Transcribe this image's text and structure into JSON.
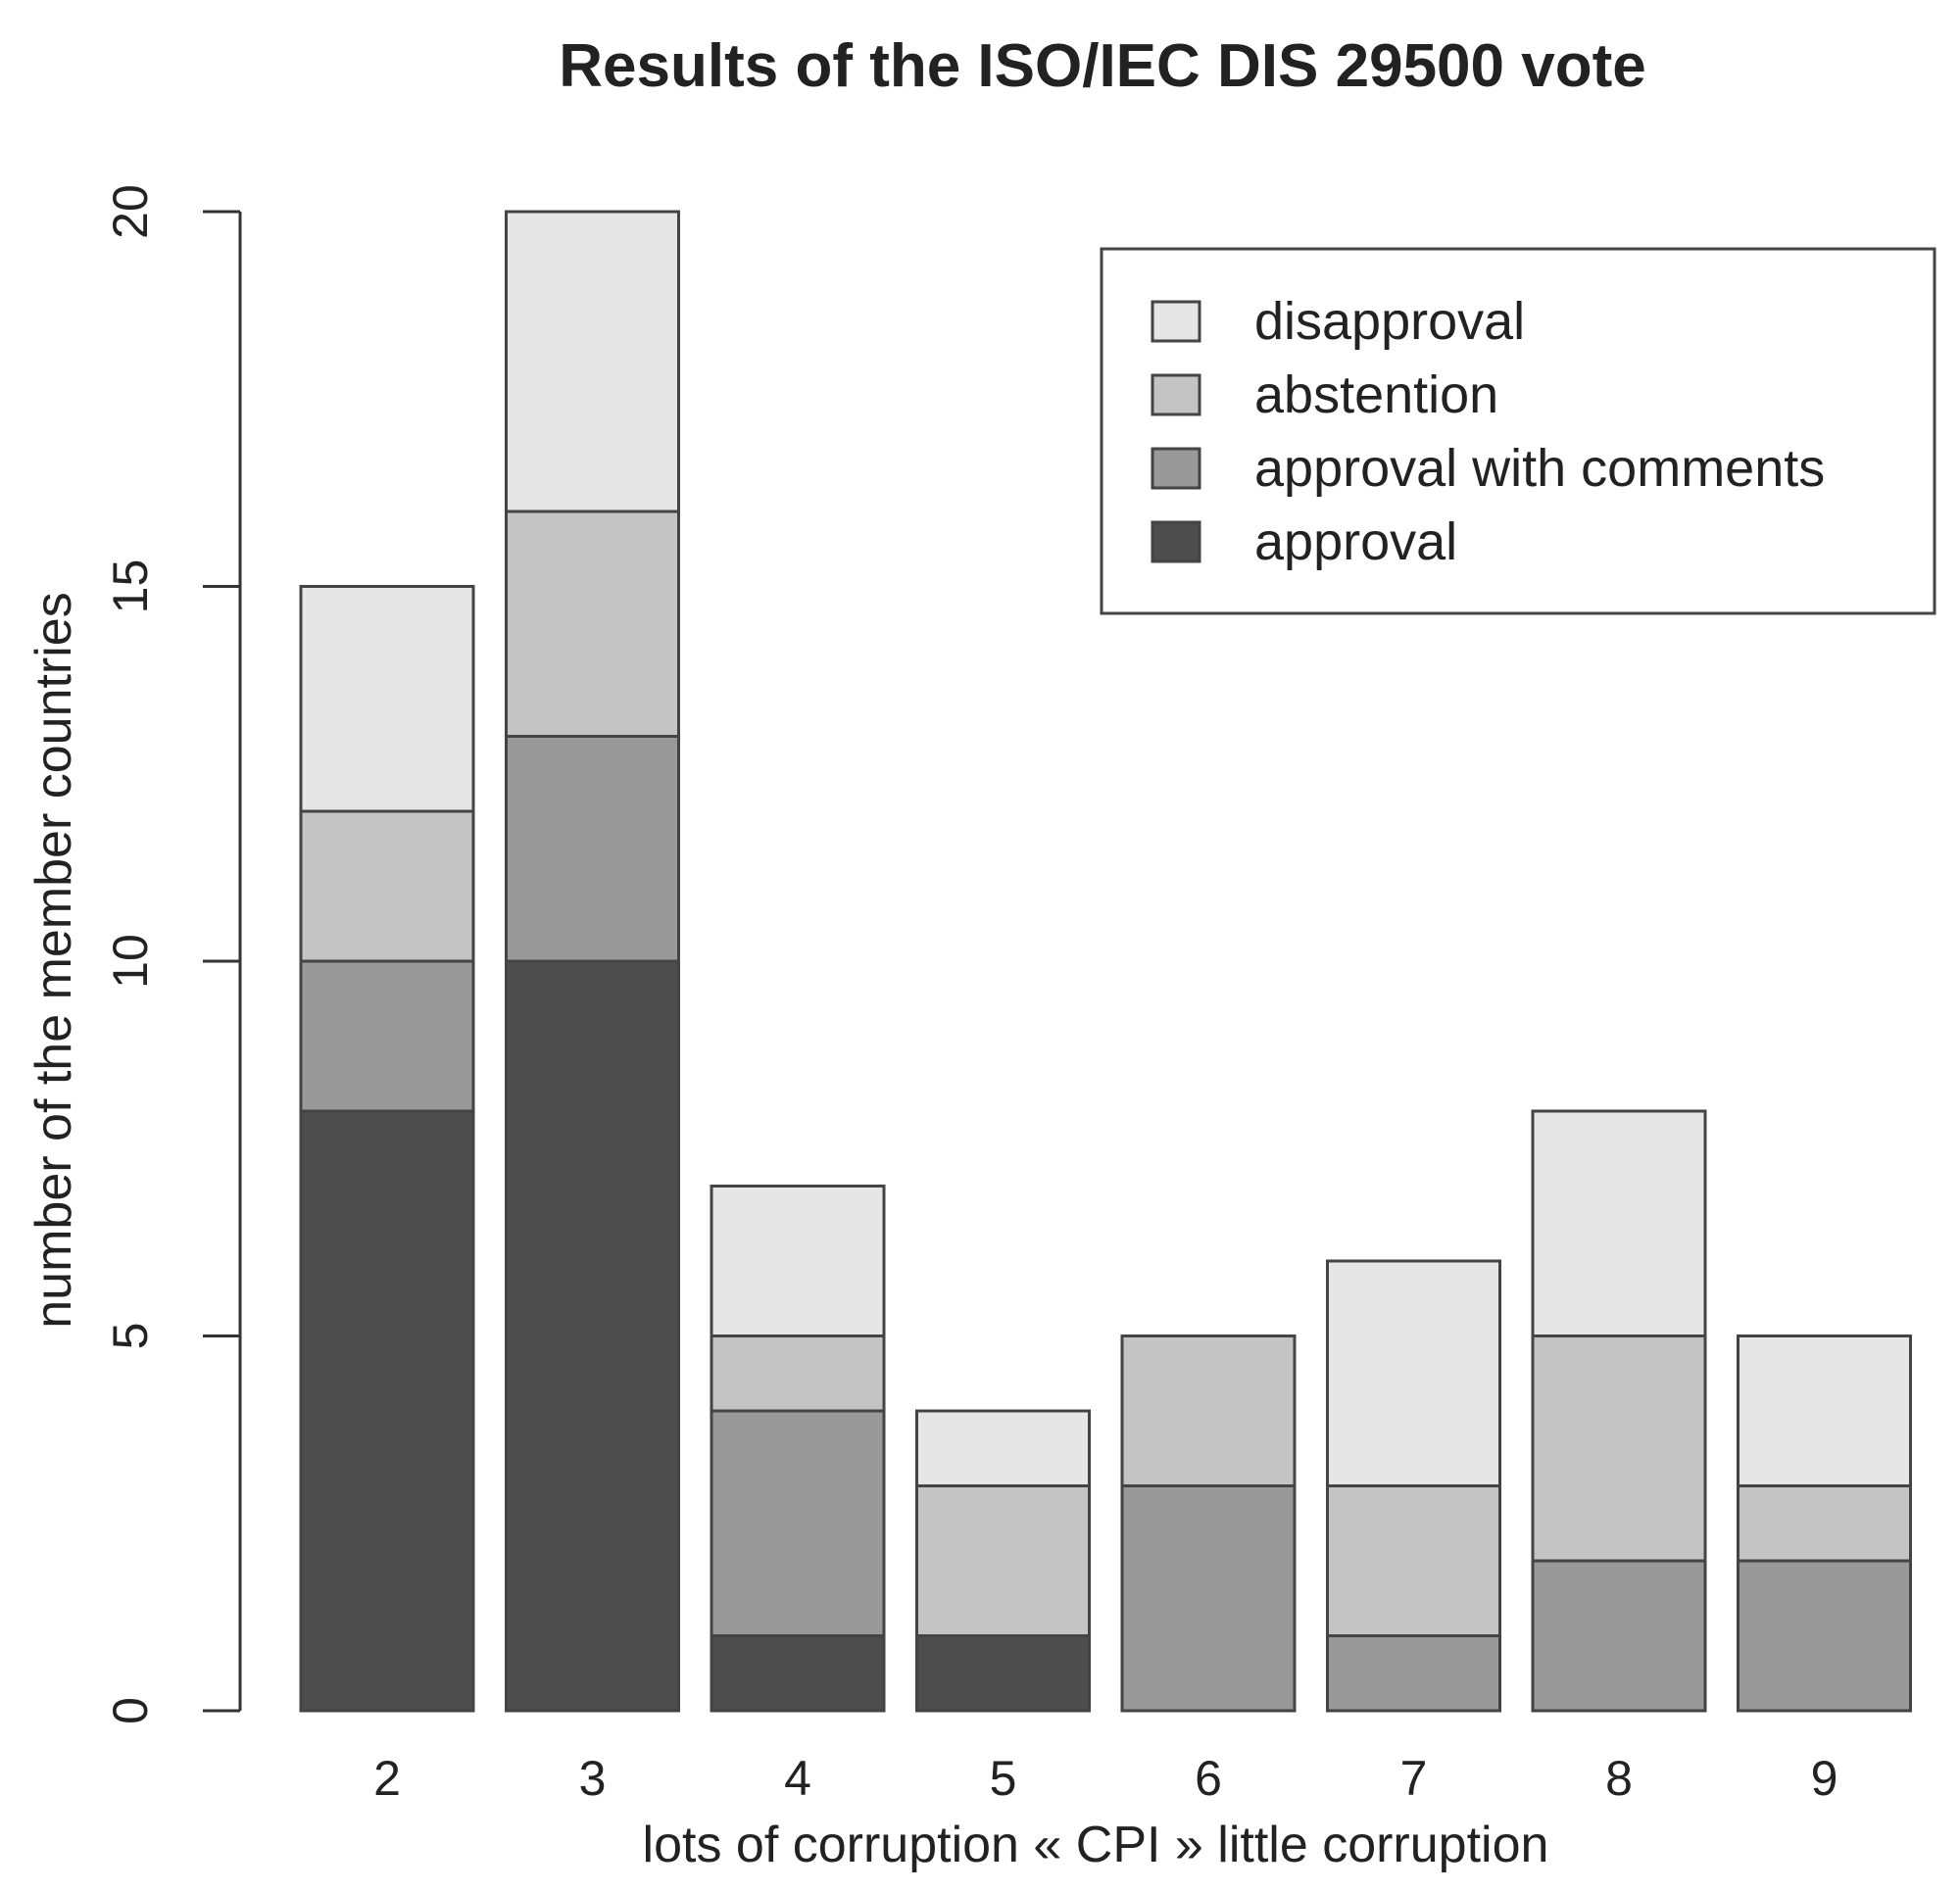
{
  "chart_data": {
    "type": "bar",
    "stacked": true,
    "title": "Results of the ISO/IEC DIS 29500 vote",
    "xlabel": "lots of corruption « CPI » little corruption",
    "ylabel": "number of the member countries",
    "categories": [
      "2",
      "3",
      "4",
      "5",
      "6",
      "7",
      "8",
      "9"
    ],
    "ylim": [
      0,
      20
    ],
    "yticks": [
      0,
      5,
      10,
      15,
      20
    ],
    "grid": false,
    "legend_position": "top-right",
    "series": [
      {
        "name": "approval",
        "color": "#4d4d4d",
        "values": [
          8,
          10,
          1,
          1,
          0,
          0,
          0,
          0
        ]
      },
      {
        "name": "approval with comments",
        "color": "#999999",
        "values": [
          2,
          3,
          3,
          0,
          3,
          1,
          2,
          2
        ]
      },
      {
        "name": "abstention",
        "color": "#c4c4c4",
        "values": [
          2,
          3,
          1,
          2,
          2,
          2,
          3,
          1
        ]
      },
      {
        "name": "disapproval",
        "color": "#e6e6e6",
        "values": [
          3,
          4,
          2,
          1,
          0,
          3,
          3,
          2
        ]
      }
    ],
    "legend_order": [
      "disapproval",
      "abstention",
      "approval with comments",
      "approval"
    ]
  }
}
